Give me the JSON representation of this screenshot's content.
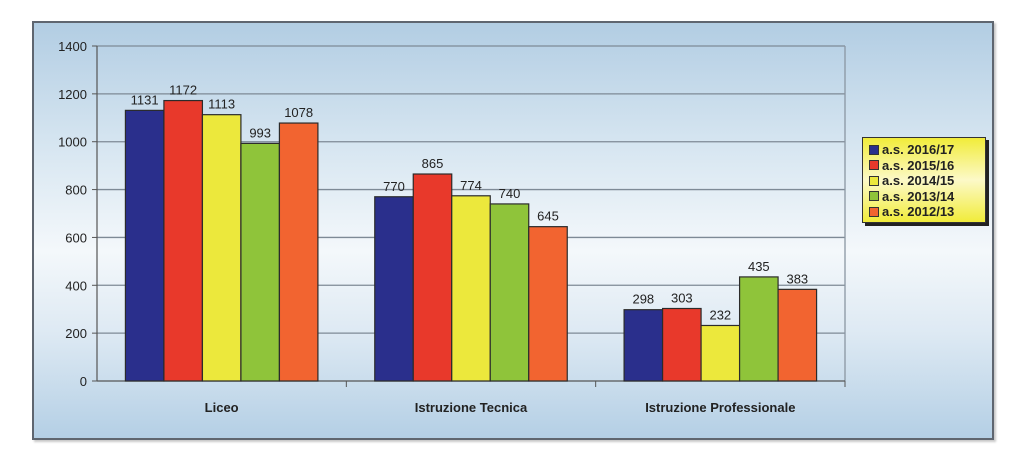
{
  "chart_data": {
    "type": "bar",
    "title": "",
    "xlabel": "",
    "ylabel": "",
    "ylim": [
      0,
      1400
    ],
    "yticks": [
      0,
      200,
      400,
      600,
      800,
      1000,
      1200,
      1400
    ],
    "grid": true,
    "legend_position": "right",
    "categories": [
      "Liceo",
      "Istruzione Tecnica",
      "Istruzione Professionale"
    ],
    "series": [
      {
        "name": "a.s. 2016/17",
        "color": "#2a2f8c",
        "values": [
          1131,
          770,
          298
        ]
      },
      {
        "name": "a.s. 2015/16",
        "color": "#e8392b",
        "values": [
          1172,
          865,
          303
        ]
      },
      {
        "name": "a.s. 2014/15",
        "color": "#ece83c",
        "values": [
          1113,
          774,
          232
        ]
      },
      {
        "name": "a.s. 2013/14",
        "color": "#8fc43a",
        "values": [
          993,
          740,
          435
        ]
      },
      {
        "name": "a.s. 2012/13",
        "color": "#f26430",
        "values": [
          1078,
          645,
          383
        ]
      }
    ]
  }
}
